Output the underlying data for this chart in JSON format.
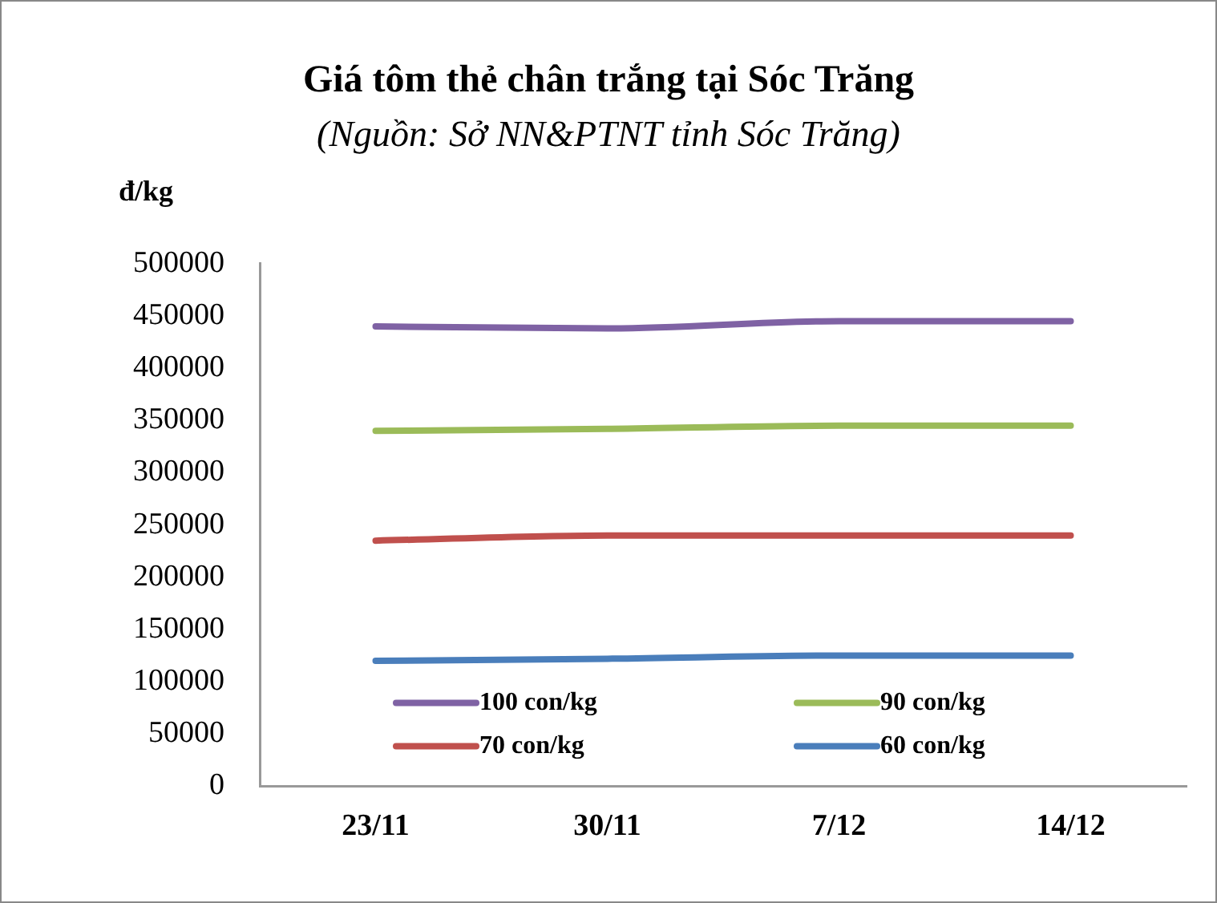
{
  "chart_data": {
    "type": "line",
    "title": "Giá tôm thẻ chân trắng tại Sóc Trăng",
    "subtitle": "(Nguồn: Sở NN&PTNT tỉnh Sóc Trăng)",
    "ylabel": "đ/kg",
    "categories": [
      "23/11",
      "30/11",
      "7/12",
      "14/12"
    ],
    "series": [
      {
        "name": "100 con/kg",
        "color": "#7f62a4",
        "values": [
          440000,
          438000,
          445000,
          445000
        ]
      },
      {
        "name": "90 con/kg",
        "color": "#9bbb59",
        "values": [
          340000,
          342000,
          345000,
          345000
        ]
      },
      {
        "name": "70 con/kg",
        "color": "#c0504d",
        "values": [
          235000,
          240000,
          240000,
          240000
        ]
      },
      {
        "name": "60 con/kg",
        "color": "#4a7ebb",
        "values": [
          120000,
          122000,
          125000,
          125000
        ]
      }
    ],
    "ylim": [
      0,
      500000
    ],
    "yticks": [
      0,
      50000,
      100000,
      150000,
      200000,
      250000,
      300000,
      350000,
      400000,
      450000,
      500000
    ],
    "grid": false,
    "legend": "bottom",
    "marker": "none",
    "line_style": "solid"
  }
}
